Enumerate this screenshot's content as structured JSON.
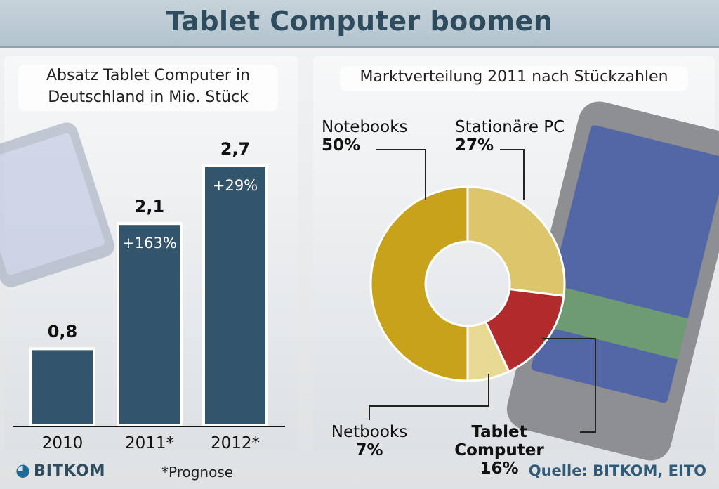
{
  "title": "Tablet Computer boomen",
  "left_panel": {
    "subtitle": "Absatz Tablet Computer in Deutschland in Mio. Stück",
    "footnote": "*Prognose"
  },
  "right_panel": {
    "subtitle": "Marktverteilung 2011 nach Stückzahlen"
  },
  "source": "Quelle: BITKOM, EITO",
  "logo_text": "BITKOM",
  "colors": {
    "bar": "#33556b",
    "notebooks": "#c7a21a",
    "stationaere": "#dcc56a",
    "tablet": "#b12a2c",
    "netbooks": "#e7d992"
  },
  "chart_data": [
    {
      "type": "bar",
      "title": "Absatz Tablet Computer in Deutschland in Mio. Stück",
      "categories": [
        "2010",
        "2011*",
        "2012*"
      ],
      "values": [
        0.8,
        2.1,
        2.7
      ],
      "value_labels": [
        "0,8",
        "2,1",
        "2,7"
      ],
      "growth_labels": [
        "",
        "+163%",
        "+29%"
      ],
      "ylim": [
        0,
        3
      ],
      "grid": false
    },
    {
      "type": "pie",
      "title": "Marktverteilung 2011 nach Stückzahlen",
      "slices": [
        {
          "name": "Notebooks",
          "value": 50,
          "label": "50%"
        },
        {
          "name": "Stationäre PC",
          "value": 27,
          "label": "27%"
        },
        {
          "name": "Tablet Computer",
          "value": 16,
          "label": "16%"
        },
        {
          "name": "Netbooks",
          "value": 7,
          "label": "7%"
        }
      ]
    }
  ]
}
